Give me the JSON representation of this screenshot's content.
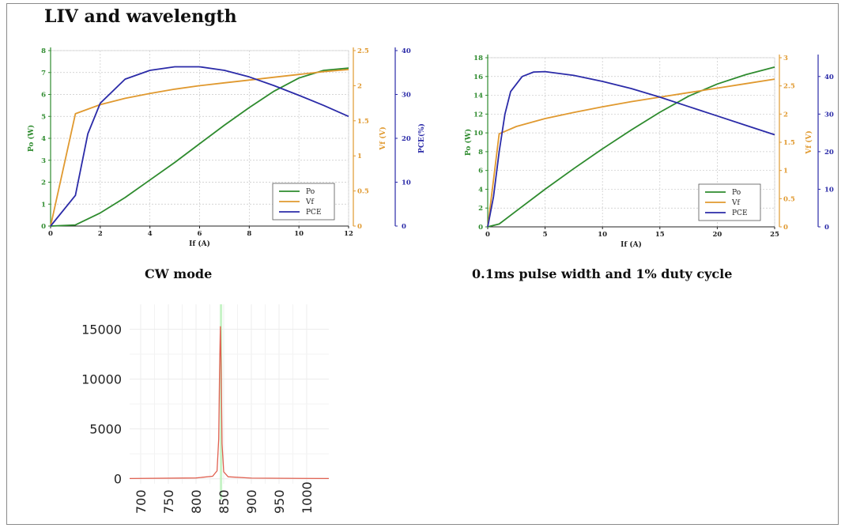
{
  "page": {
    "title": "LIV and wavelength"
  },
  "colors": {
    "po": "#2e8b2e",
    "vf": "#e0992f",
    "pce": "#2b2ba8",
    "spectrum": "#e06050",
    "spectrum_band": "#b8f0b8"
  },
  "chart_data": [
    {
      "id": "cw",
      "type": "line",
      "caption": "CW mode",
      "xlabel": "If (A)",
      "xlim": [
        0,
        12
      ],
      "xticks": [
        0,
        2,
        4,
        6,
        8,
        10,
        12
      ],
      "axes": {
        "po": {
          "label": "Po (W)",
          "lim": [
            0,
            8
          ],
          "ticks": [
            0,
            1,
            2,
            3,
            4,
            5,
            6,
            7,
            8
          ]
        },
        "vf": {
          "label": "Vf (V)",
          "lim": [
            0,
            2.5
          ],
          "ticks": [
            0,
            0.5,
            1,
            1.5,
            2,
            2.5
          ]
        },
        "pce": {
          "label": "PCE(%)",
          "lim": [
            0,
            40
          ],
          "ticks": [
            0,
            10,
            20,
            30,
            40
          ]
        }
      },
      "legend": {
        "position": "lower-right",
        "entries": [
          "Po",
          "Vf",
          "PCE"
        ]
      },
      "grid": true,
      "series": [
        {
          "name": "Po",
          "axis": "po",
          "color_key": "po",
          "x": [
            0,
            1,
            2,
            3,
            4,
            5,
            6,
            7,
            8,
            9,
            10,
            11,
            12
          ],
          "y": [
            0,
            0.05,
            0.6,
            1.3,
            2.1,
            2.9,
            3.75,
            4.6,
            5.4,
            6.15,
            6.75,
            7.1,
            7.2
          ]
        },
        {
          "name": "Vf",
          "axis": "vf",
          "color_key": "vf",
          "x": [
            0,
            1,
            2,
            3,
            4,
            5,
            6,
            7,
            8,
            9,
            10,
            11,
            12
          ],
          "y": [
            0,
            1.6,
            1.73,
            1.82,
            1.89,
            1.95,
            2.0,
            2.04,
            2.08,
            2.12,
            2.16,
            2.2,
            2.23
          ]
        },
        {
          "name": "PCE",
          "axis": "pce",
          "color_key": "pce",
          "x": [
            0,
            1,
            1.5,
            2,
            3,
            4,
            5,
            6,
            7,
            8,
            9,
            10,
            11,
            12
          ],
          "y": [
            0,
            7,
            21,
            28,
            33.5,
            35.5,
            36.3,
            36.3,
            35.5,
            34,
            32,
            29.8,
            27.5,
            25
          ]
        }
      ]
    },
    {
      "id": "pulse",
      "type": "line",
      "caption": "0.1ms pulse width and 1% duty cycle",
      "xlabel": "If (A)",
      "xlim": [
        0,
        25
      ],
      "xticks": [
        0,
        5,
        10,
        15,
        20,
        25
      ],
      "axes": {
        "po": {
          "label": "Po (W)",
          "lim": [
            0,
            18
          ],
          "ticks": [
            0,
            2,
            4,
            6,
            8,
            10,
            12,
            14,
            16,
            18
          ]
        },
        "vf": {
          "label": "Vf (V)",
          "lim": [
            0,
            3
          ],
          "ticks": [
            0,
            0.5,
            1,
            1.5,
            2,
            2.5,
            3
          ]
        },
        "pce": {
          "label": "",
          "lim": [
            0,
            45
          ],
          "ticks": [
            0,
            10,
            20,
            30,
            40
          ]
        }
      },
      "legend": {
        "position": "lower-right",
        "entries": [
          "Po",
          "Vf",
          "PCE"
        ]
      },
      "grid": true,
      "series": [
        {
          "name": "Po",
          "axis": "po",
          "color_key": "po",
          "x": [
            0,
            1,
            2.5,
            5,
            7.5,
            10,
            12.5,
            15,
            17.5,
            20,
            22.5,
            25
          ],
          "y": [
            0,
            0.3,
            1.7,
            4.0,
            6.2,
            8.3,
            10.3,
            12.2,
            13.9,
            15.2,
            16.2,
            17.0
          ]
        },
        {
          "name": "Vf",
          "axis": "vf",
          "color_key": "vf",
          "x": [
            0,
            1,
            2.5,
            5,
            7.5,
            10,
            12.5,
            15,
            17.5,
            20,
            22.5,
            25
          ],
          "y": [
            0,
            1.65,
            1.78,
            1.92,
            2.03,
            2.13,
            2.22,
            2.3,
            2.38,
            2.46,
            2.54,
            2.62
          ]
        },
        {
          "name": "PCE",
          "axis": "pce",
          "color_key": "pce",
          "x": [
            0,
            0.5,
            1,
            1.5,
            2,
            3,
            4,
            5,
            7.5,
            10,
            12.5,
            15,
            17.5,
            20,
            22.5,
            25
          ],
          "y": [
            0,
            8,
            20,
            30,
            36,
            40,
            41.2,
            41.3,
            40.3,
            38.7,
            36.8,
            34.5,
            32,
            29.5,
            27,
            24.5
          ]
        }
      ]
    },
    {
      "id": "spectrum",
      "type": "line",
      "xlim": [
        680,
        1040
      ],
      "xticks": [
        700,
        750,
        800,
        850,
        900,
        950,
        1000
      ],
      "ylim": [
        -500,
        17500
      ],
      "yticks": [
        0,
        5000,
        10000,
        15000
      ],
      "grid": true,
      "series": [
        {
          "name": "",
          "color_key": "spectrum",
          "x": [
            680,
            800,
            830,
            838,
            841,
            842.5,
            844,
            845.5,
            847,
            850,
            858,
            900,
            1040
          ],
          "y": [
            20,
            80,
            250,
            800,
            4000,
            11000,
            15300,
            10500,
            3500,
            700,
            200,
            60,
            20
          ]
        }
      ]
    }
  ]
}
